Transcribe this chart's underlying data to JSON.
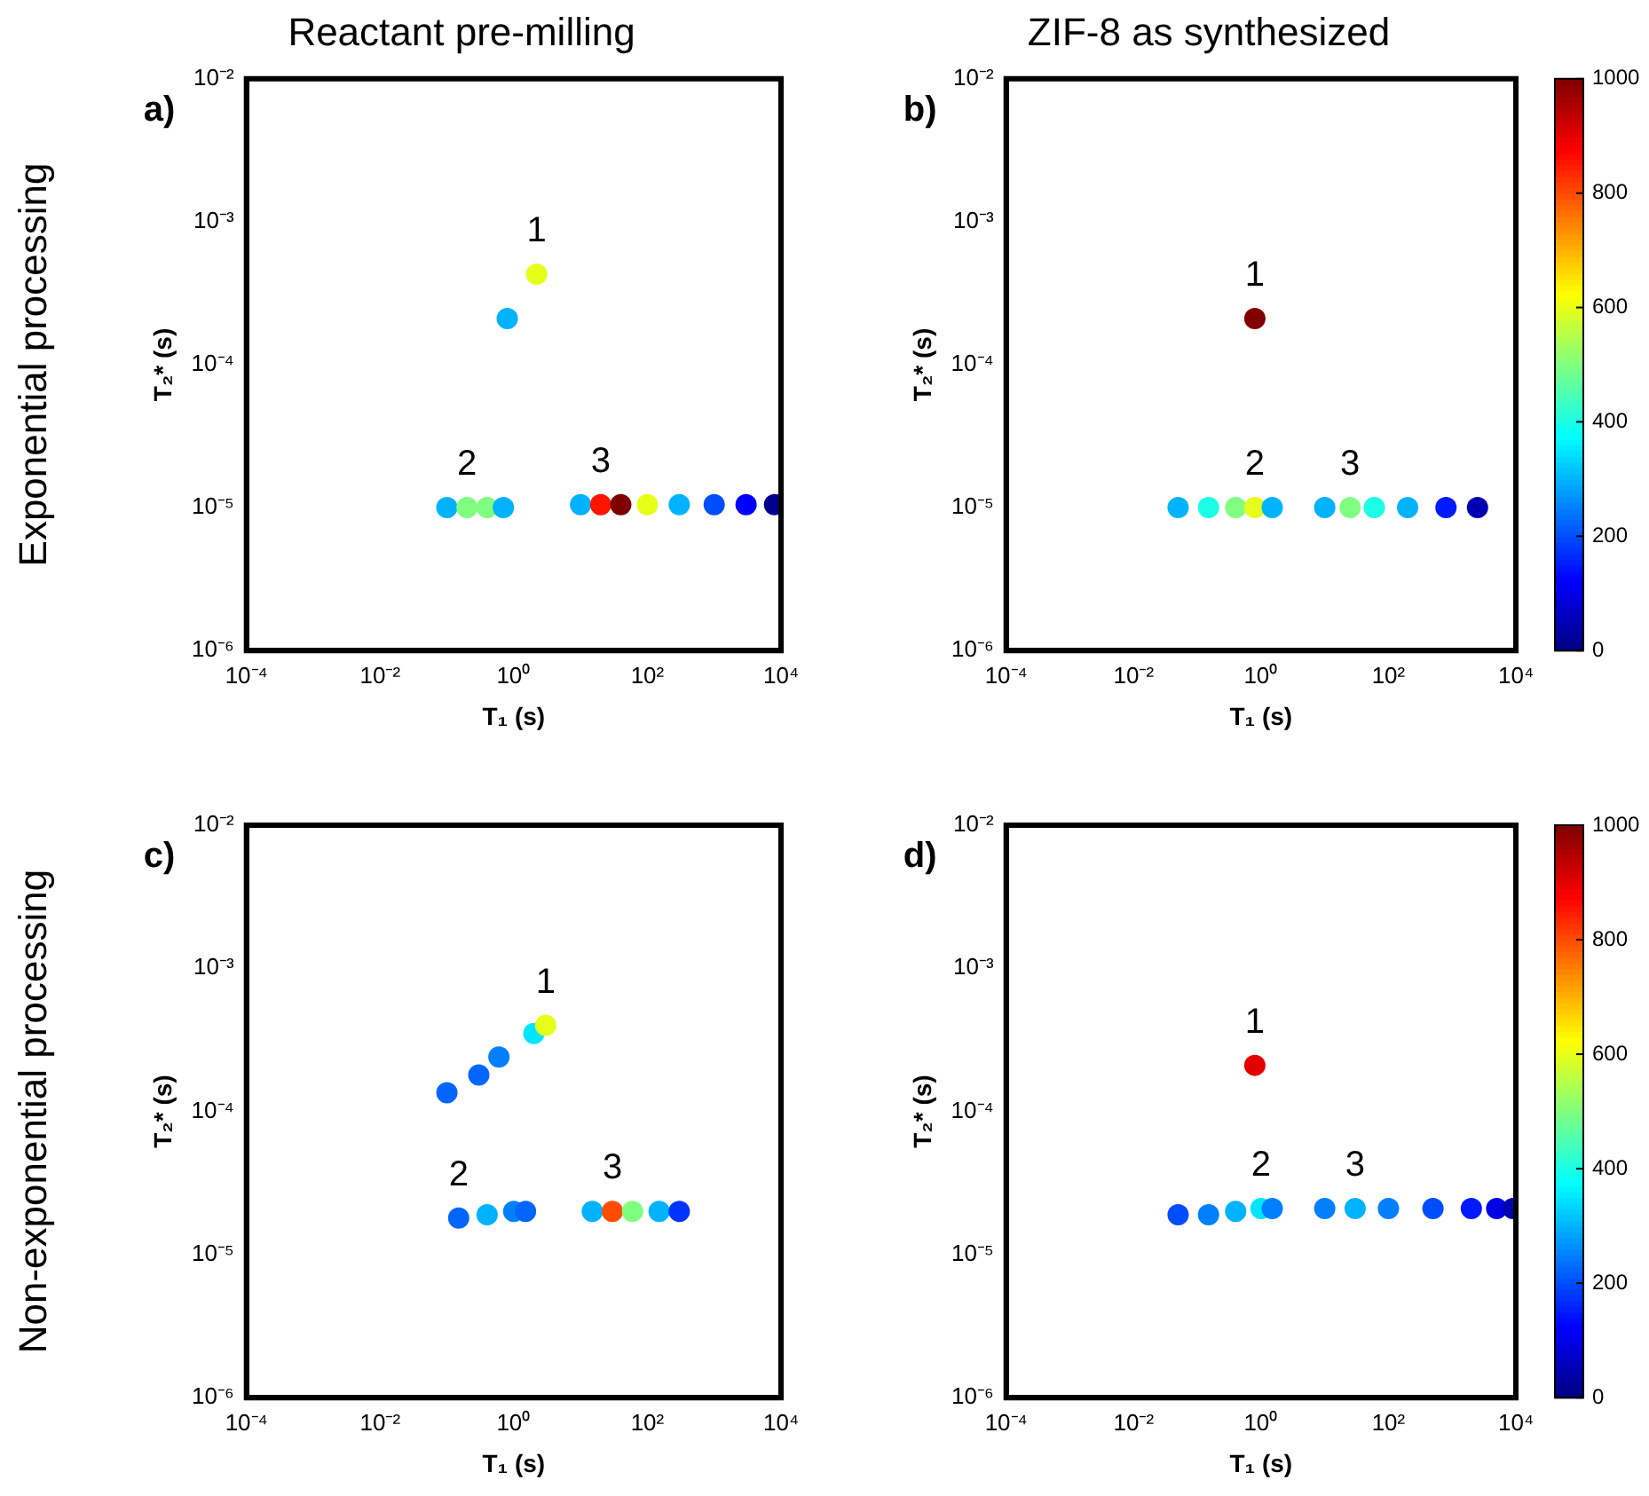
{
  "chart_data": [
    {
      "type": "scatter",
      "title": "Reactant pre-milling",
      "xlabel": "T₁ (s)",
      "ylabel": "T₂* (s)",
      "log": "xy",
      "xlim": [
        0.0001,
        10000
      ],
      "ylim": [
        1e-06,
        0.01
      ],
      "xticks": [
        {
          "value": 0.0001,
          "label": "10⁻⁴"
        },
        {
          "value": 0.01,
          "label": "10⁻²"
        },
        {
          "value": 1,
          "label": "10⁰"
        },
        {
          "value": 100,
          "label": "10²"
        },
        {
          "value": 10000,
          "label": "10⁴"
        }
      ],
      "yticks": [
        {
          "value": 1e-06,
          "label": "10⁻⁶"
        },
        {
          "value": 1e-05,
          "label": "10⁻⁵"
        },
        {
          "value": 0.0001,
          "label": "10⁻⁴"
        },
        {
          "value": 0.001,
          "label": "10⁻³"
        },
        {
          "value": 0.01,
          "label": "10⁻²"
        }
      ],
      "x": [
        2.2,
        0.8,
        0.1,
        0.2,
        0.4,
        0.7,
        10,
        20,
        40,
        100,
        300,
        1000,
        3000,
        8000
      ],
      "values": [
        0.00043,
        0.00021,
        1e-05,
        1e-05,
        1e-05,
        1e-05,
        1.05e-05,
        1.05e-05,
        1.05e-05,
        1.05e-05,
        1.05e-05,
        1.05e-05,
        1.05e-05,
        1.05e-05
      ],
      "colors": [
        "#e5ff19",
        "#00b2ff",
        "#00b2ff",
        "#7fff7f",
        "#7fff7f",
        "#00b2ff",
        "#00b2ff",
        "#ff1400",
        "#7f0000",
        "#e5ff19",
        "#00b2ff",
        "#004cff",
        "#0000ff",
        "#00008f"
      ],
      "annotations": [
        "Exponential processing",
        "a)",
        {
          "text": "1",
          "x": 2.2,
          "y": 0.00043
        },
        {
          "text": "2",
          "x": 0.2,
          "y": 1e-05
        },
        {
          "text": "3",
          "x": 20,
          "y": 1.05e-05
        }
      ]
    },
    {
      "type": "scatter",
      "title": "ZIF-8 as synthesized",
      "xlabel": "T₁ (s)",
      "ylabel": "T₂* (s)",
      "log": "xy",
      "xlim": [
        0.0001,
        10000
      ],
      "ylim": [
        1e-06,
        0.01
      ],
      "xticks": [
        {
          "value": 0.0001,
          "label": "10⁻⁴"
        },
        {
          "value": 0.01,
          "label": "10⁻²"
        },
        {
          "value": 1,
          "label": "10⁰"
        },
        {
          "value": 100,
          "label": "10²"
        },
        {
          "value": 10000,
          "label": "10⁴"
        }
      ],
      "yticks": [
        {
          "value": 1e-06,
          "label": "10⁻⁶"
        },
        {
          "value": 1e-05,
          "label": "10⁻⁵"
        },
        {
          "value": 0.0001,
          "label": "10⁻⁴"
        },
        {
          "value": 0.001,
          "label": "10⁻³"
        },
        {
          "value": 0.01,
          "label": "10⁻²"
        }
      ],
      "clim": [
        0,
        1000
      ],
      "cticks": [
        0,
        200,
        400,
        600,
        800,
        1000
      ],
      "x": [
        0.8,
        0.05,
        0.15,
        0.4,
        0.8,
        1.5,
        10,
        25,
        60,
        200,
        800,
        2500
      ],
      "values": [
        0.00021,
        1e-05,
        1e-05,
        1e-05,
        1e-05,
        1e-05,
        1e-05,
        1e-05,
        1e-05,
        1e-05,
        1e-05,
        1e-05
      ],
      "cvalues": [
        1000,
        300,
        400,
        500,
        600,
        300,
        300,
        500,
        400,
        300,
        150,
        50
      ],
      "annotations": [
        "b)",
        {
          "text": "1",
          "x": 0.8,
          "y": 0.00021
        },
        {
          "text": "2",
          "x": 0.8,
          "y": 1e-05
        },
        {
          "text": "3",
          "x": 25,
          "y": 1e-05
        }
      ]
    },
    {
      "type": "scatter",
      "xlabel": "T₁ (s)",
      "ylabel": "T₂* (s)",
      "log": "xy",
      "xlim": [
        0.0001,
        10000
      ],
      "ylim": [
        1e-06,
        0.01
      ],
      "xticks": [
        {
          "value": 0.0001,
          "label": "10⁻⁴"
        },
        {
          "value": 0.01,
          "label": "10⁻²"
        },
        {
          "value": 1,
          "label": "10⁰"
        },
        {
          "value": 100,
          "label": "10²"
        },
        {
          "value": 10000,
          "label": "10⁴"
        }
      ],
      "yticks": [
        {
          "value": 1e-06,
          "label": "10⁻⁶"
        },
        {
          "value": 1e-05,
          "label": "10⁻⁵"
        },
        {
          "value": 0.0001,
          "label": "10⁻⁴"
        },
        {
          "value": 0.001,
          "label": "10⁻³"
        },
        {
          "value": 0.01,
          "label": "10⁻²"
        }
      ],
      "x": [
        0.1,
        0.3,
        0.6,
        2,
        3,
        0.15,
        0.4,
        1,
        1.5,
        15,
        30,
        60,
        150,
        300
      ],
      "values": [
        0.000135,
        0.00018,
        0.00024,
        0.00035,
        0.0004,
        1.8e-05,
        1.9e-05,
        2e-05,
        2e-05,
        2e-05,
        2e-05,
        2e-05,
        2e-05,
        2e-05
      ],
      "colors": [
        "#0066ff",
        "#0066ff",
        "#0080ff",
        "#00e5ff",
        "#e5ff19",
        "#0066ff",
        "#00b2ff",
        "#0080ff",
        "#0066ff",
        "#00b2ff",
        "#ff4c00",
        "#7fff7f",
        "#00b2ff",
        "#0033ff"
      ],
      "annotations": [
        "Non-exponential processing",
        "c)",
        {
          "text": "1",
          "x": 3,
          "y": 0.0004
        },
        {
          "text": "2",
          "x": 0.15,
          "y": 1.8e-05
        },
        {
          "text": "3",
          "x": 30,
          "y": 2e-05
        }
      ]
    },
    {
      "type": "scatter",
      "xlabel": "T₁ (s)",
      "ylabel": "T₂* (s)",
      "log": "xy",
      "xlim": [
        0.0001,
        10000
      ],
      "ylim": [
        1e-06,
        0.01
      ],
      "xticks": [
        {
          "value": 0.0001,
          "label": "10⁻⁴"
        },
        {
          "value": 0.01,
          "label": "10⁻²"
        },
        {
          "value": 1,
          "label": "10⁰"
        },
        {
          "value": 100,
          "label": "10²"
        },
        {
          "value": 10000,
          "label": "10⁴"
        }
      ],
      "yticks": [
        {
          "value": 1e-06,
          "label": "10⁻⁶"
        },
        {
          "value": 1e-05,
          "label": "10⁻⁵"
        },
        {
          "value": 0.0001,
          "label": "10⁻⁴"
        },
        {
          "value": 0.001,
          "label": "10⁻³"
        },
        {
          "value": 0.01,
          "label": "10⁻²"
        }
      ],
      "clim": [
        0,
        1000
      ],
      "cticks": [
        0,
        200,
        400,
        600,
        800,
        1000
      ],
      "x": [
        0.8,
        0.05,
        0.15,
        0.4,
        1,
        1.5,
        10,
        30,
        100,
        500,
        2000,
        5000,
        9000
      ],
      "values": [
        0.00021,
        1.9e-05,
        1.9e-05,
        2e-05,
        2.1e-05,
        2.1e-05,
        2.1e-05,
        2.1e-05,
        2.1e-05,
        2.1e-05,
        2.1e-05,
        2.1e-05,
        2.1e-05
      ],
      "cvalues": [
        900,
        200,
        250,
        300,
        350,
        250,
        250,
        300,
        250,
        200,
        150,
        100,
        50
      ],
      "annotations": [
        "d)",
        {
          "text": "1",
          "x": 0.8,
          "y": 0.00021
        },
        {
          "text": "2",
          "x": 1,
          "y": 2.1e-05
        },
        {
          "text": "3",
          "x": 30,
          "y": 2.1e-05
        }
      ]
    }
  ]
}
